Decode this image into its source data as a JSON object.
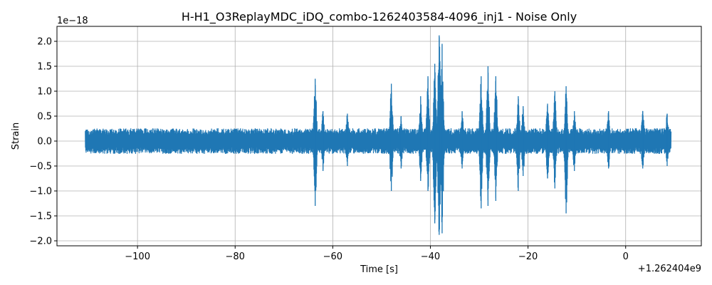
{
  "chart_data": {
    "type": "line",
    "title": "H-H1_O3ReplayMDC_iDQ_combo-1262403584-4096_inj1 - Noise Only",
    "xlabel": "Time [s]",
    "ylabel": "Strain",
    "x_offset_label": "+1.262404e9",
    "y_scale_label": "1e−18",
    "xlim": [
      -116.5,
      15.5
    ],
    "ylim": [
      -2.1,
      2.3
    ],
    "x_ticks": [
      -100,
      -80,
      -60,
      -40,
      -20,
      0
    ],
    "x_tick_labels": [
      "−100",
      "−80",
      "−60",
      "−40",
      "−20",
      "0"
    ],
    "y_ticks": [
      -2.0,
      -1.5,
      -1.0,
      -0.5,
      0.0,
      0.5,
      1.0,
      1.5,
      2.0
    ],
    "y_tick_labels": [
      "−2.0",
      "−1.5",
      "−1.0",
      "−0.5",
      "0.0",
      "0.5",
      "1.0",
      "1.5",
      "2.0"
    ],
    "grid": true,
    "series": [
      {
        "color": "#1f77b4",
        "x_range": [
          -110.7,
          9.3
        ],
        "baseline_amplitude": 0.25,
        "bursts": [
          {
            "x": -63.6,
            "max": 1.25,
            "min": -1.3
          },
          {
            "x": -62.0,
            "max": 0.6,
            "min": -0.6
          },
          {
            "x": -57.0,
            "max": 0.55,
            "min": -0.5
          },
          {
            "x": -48.0,
            "max": 1.15,
            "min": -1.0
          },
          {
            "x": -46.0,
            "max": 0.5,
            "min": -0.55
          },
          {
            "x": -42.0,
            "max": 0.9,
            "min": -0.8
          },
          {
            "x": -40.5,
            "max": 1.3,
            "min": -1.0
          },
          {
            "x": -39.1,
            "max": 1.55,
            "min": -1.65
          },
          {
            "x": -38.2,
            "max": 2.12,
            "min": -1.88
          },
          {
            "x": -37.6,
            "max": 1.95,
            "min": -1.85
          },
          {
            "x": -33.5,
            "max": 0.6,
            "min": -0.55
          },
          {
            "x": -29.6,
            "max": 1.3,
            "min": -1.35
          },
          {
            "x": -28.2,
            "max": 1.5,
            "min": -1.3
          },
          {
            "x": -26.6,
            "max": 1.3,
            "min": -1.2
          },
          {
            "x": -22.0,
            "max": 0.9,
            "min": -1.0
          },
          {
            "x": -21.0,
            "max": 0.7,
            "min": -0.7
          },
          {
            "x": -16.0,
            "max": 0.75,
            "min": -0.75
          },
          {
            "x": -14.5,
            "max": 1.0,
            "min": -0.95
          },
          {
            "x": -12.2,
            "max": 1.1,
            "min": -1.45
          },
          {
            "x": -10.5,
            "max": 0.6,
            "min": -0.6
          },
          {
            "x": -3.5,
            "max": 0.6,
            "min": -0.55
          },
          {
            "x": 3.5,
            "max": 0.6,
            "min": -0.55
          },
          {
            "x": 8.5,
            "max": 0.55,
            "min": -0.5
          }
        ]
      }
    ]
  }
}
